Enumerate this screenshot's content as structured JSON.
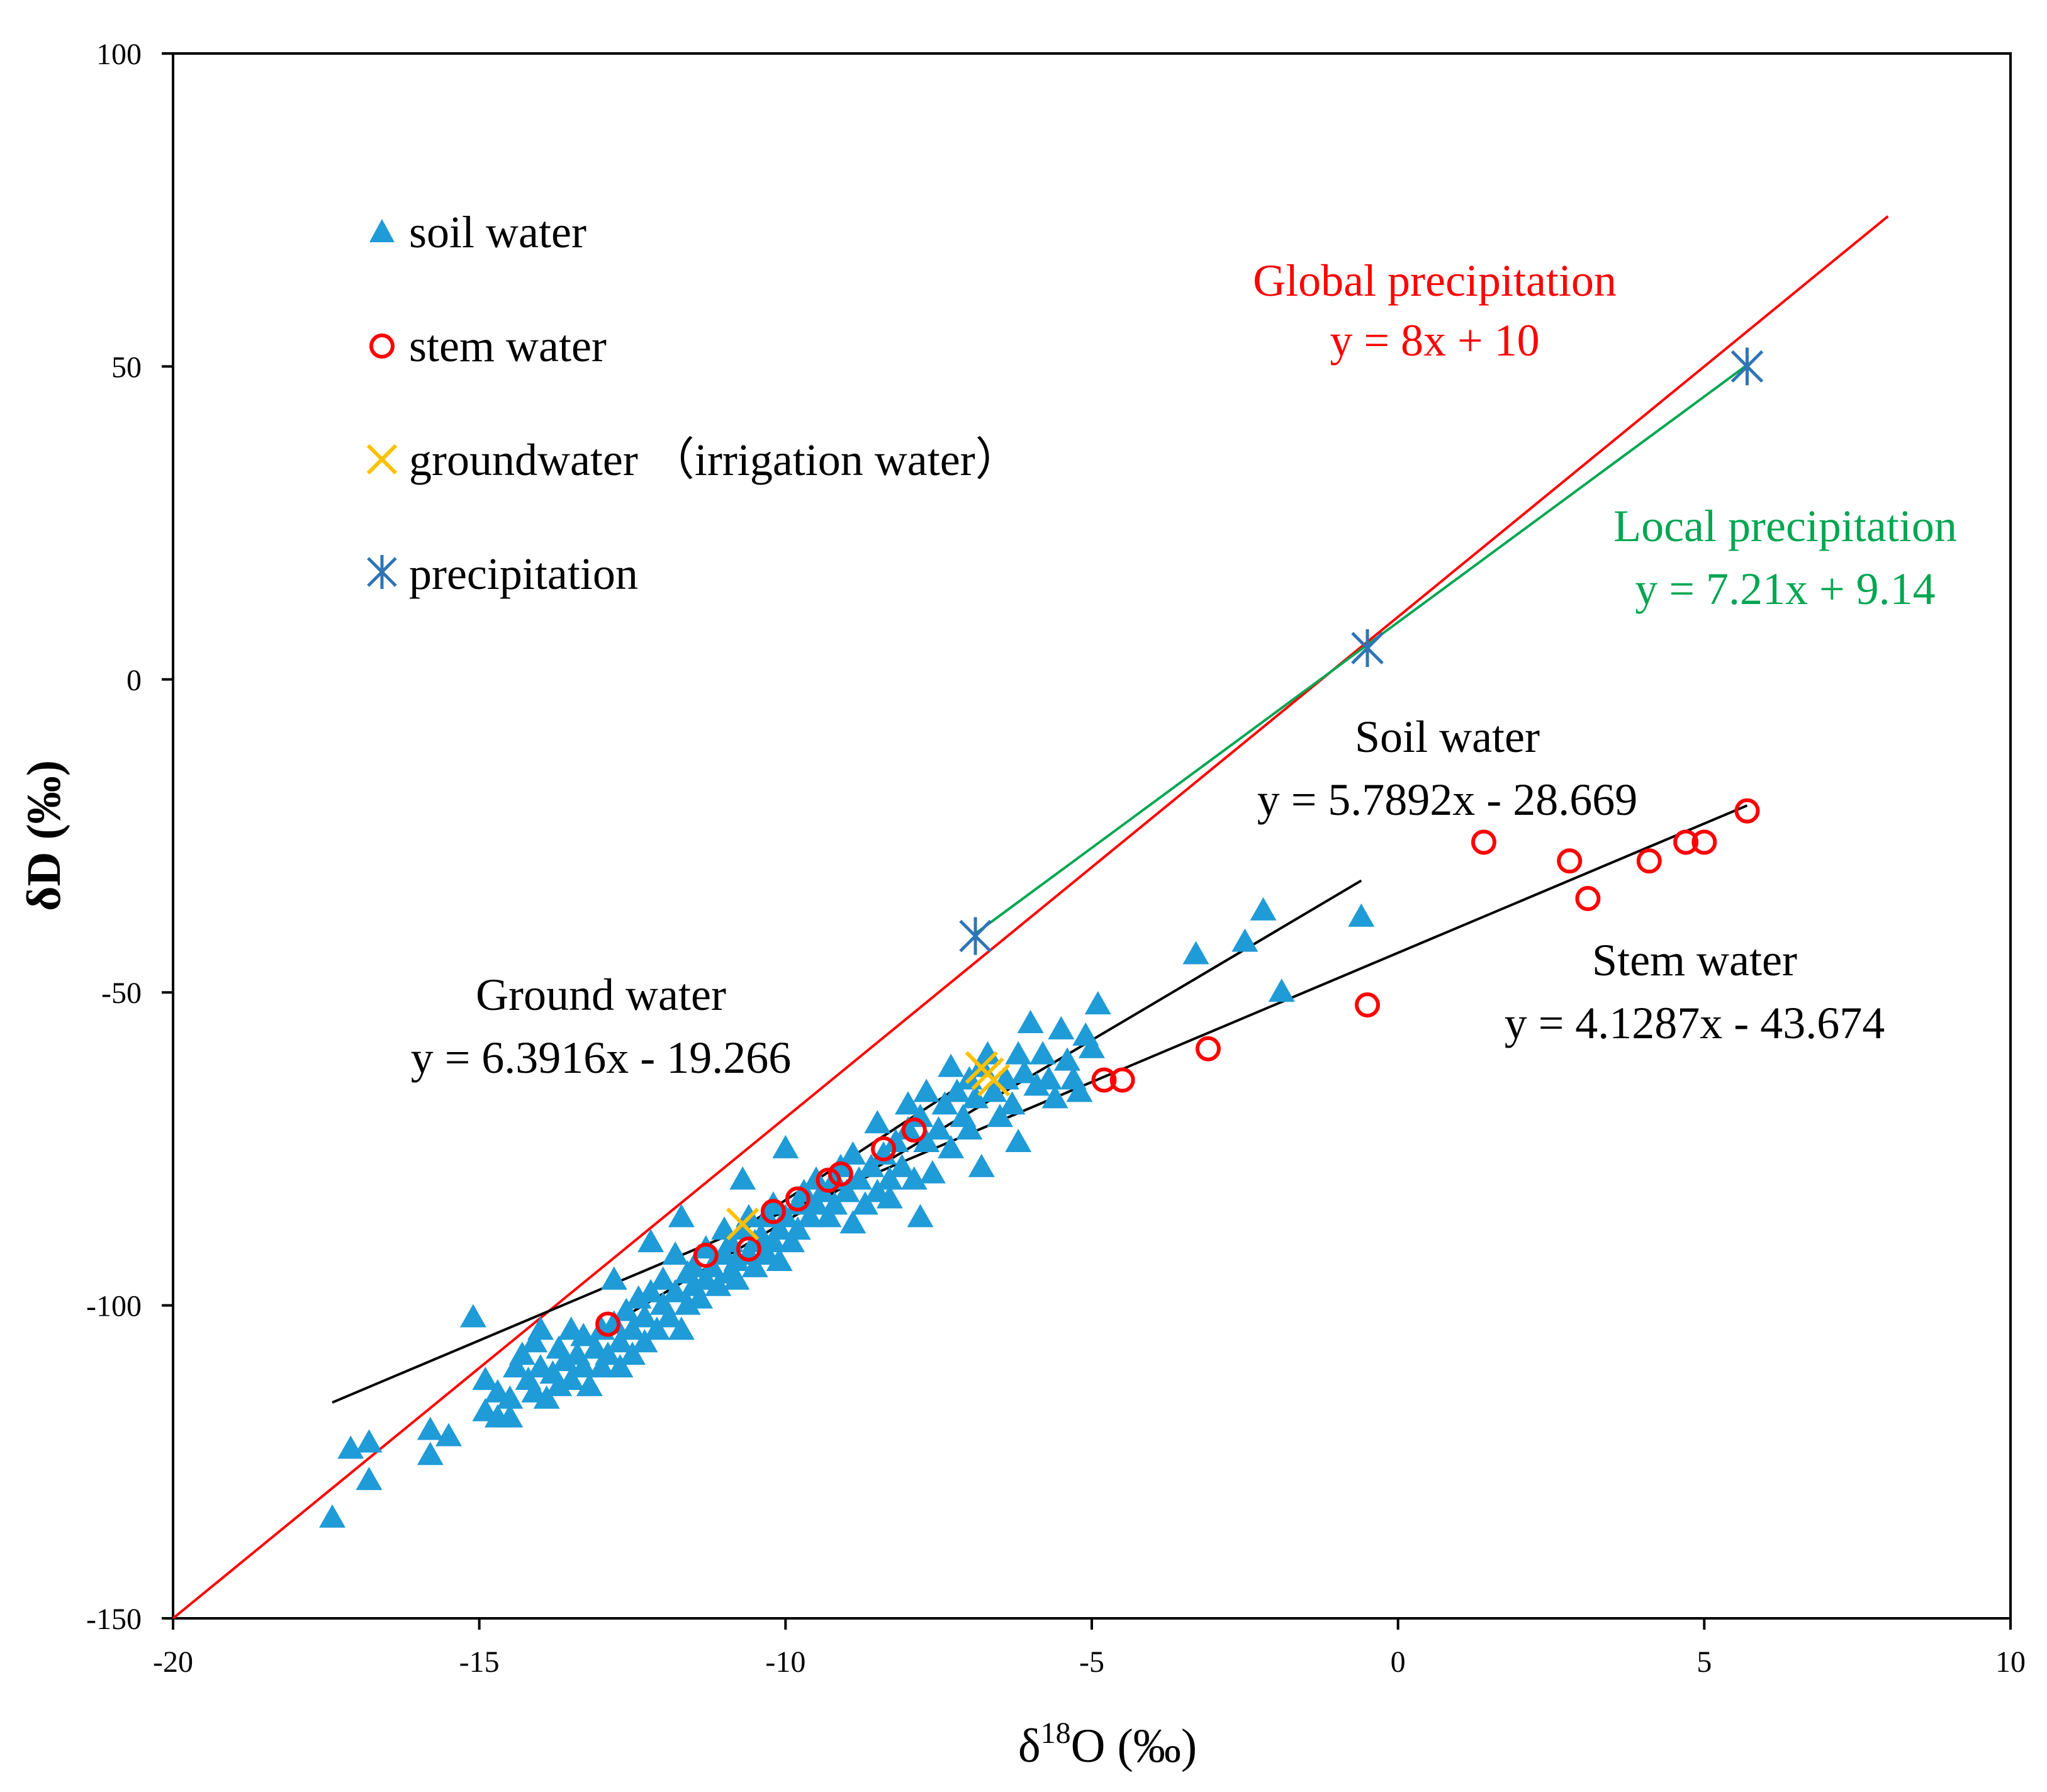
{
  "chart_data": {
    "type": "scatter",
    "title": "",
    "xlabel": "δ¹⁸O (‰)",
    "xlabel_main": "δ",
    "xlabel_sup": "18",
    "xlabel_rest": "O (‰)",
    "ylabel": "δD (‰)",
    "xlim": [
      -20,
      10
    ],
    "ylim": [
      -150,
      100
    ],
    "x_ticks": [
      -20,
      -15,
      -10,
      -5,
      0,
      5,
      10
    ],
    "y_ticks": [
      -150,
      -100,
      -50,
      0,
      50,
      100
    ],
    "x_tick_labels": [
      "-20",
      "-15",
      "-10",
      "-5",
      "0",
      "5",
      "10"
    ],
    "y_tick_labels": [
      "-150",
      "-100",
      "-50",
      "0",
      "50",
      "100"
    ],
    "grid": false,
    "legend": {
      "position": "top-left",
      "entries": [
        {
          "label": "soil water",
          "marker": "triangle",
          "color": "#1f9bd7"
        },
        {
          "label": "stem water",
          "marker": "circle-open",
          "color": "#ff0000"
        },
        {
          "label": "groundwater （irrigation water）",
          "marker": "x",
          "color": "#ffc000"
        },
        {
          "label": "precipitation",
          "marker": "asterisk",
          "color": "#2e75b6"
        }
      ]
    },
    "series": [
      {
        "name": "soil water",
        "marker": "triangle",
        "color": "#1f9bd7",
        "points": [
          [
            -17.4,
            -134
          ],
          [
            -17.1,
            -123
          ],
          [
            -16.8,
            -122
          ],
          [
            -16.8,
            -128
          ],
          [
            -15.8,
            -120
          ],
          [
            -15.8,
            -124
          ],
          [
            -15.5,
            -121
          ],
          [
            -15.1,
            -102
          ],
          [
            -14.9,
            -112
          ],
          [
            -14.9,
            -117
          ],
          [
            -14.7,
            -114
          ],
          [
            -14.7,
            -118
          ],
          [
            -14.5,
            -115
          ],
          [
            -14.5,
            -118
          ],
          [
            -14.4,
            -110
          ],
          [
            -14.3,
            -108
          ],
          [
            -14.2,
            -112
          ],
          [
            -14.1,
            -106
          ],
          [
            -14.1,
            -114
          ],
          [
            -14.0,
            -104
          ],
          [
            -14.0,
            -110
          ],
          [
            -13.9,
            -115
          ],
          [
            -13.8,
            -111
          ],
          [
            -13.7,
            -107
          ],
          [
            -13.7,
            -113
          ],
          [
            -13.6,
            -109
          ],
          [
            -13.5,
            -104
          ],
          [
            -13.5,
            -112
          ],
          [
            -13.4,
            -108
          ],
          [
            -13.3,
            -110
          ],
          [
            -13.3,
            -105
          ],
          [
            -13.2,
            -113
          ],
          [
            -13.1,
            -107
          ],
          [
            -13.0,
            -104
          ],
          [
            -13.0,
            -110
          ],
          [
            -12.9,
            -108
          ],
          [
            -12.8,
            -103
          ],
          [
            -12.8,
            -96
          ],
          [
            -12.7,
            -106
          ],
          [
            -12.7,
            -110
          ],
          [
            -12.6,
            -101
          ],
          [
            -12.5,
            -104
          ],
          [
            -12.5,
            -108
          ],
          [
            -12.4,
            -99
          ],
          [
            -12.3,
            -102
          ],
          [
            -12.3,
            -106
          ],
          [
            -12.2,
            -90
          ],
          [
            -12.2,
            -98
          ],
          [
            -12.1,
            -104
          ],
          [
            -12.0,
            -100
          ],
          [
            -12.0,
            -96
          ],
          [
            -11.9,
            -102
          ],
          [
            -11.8,
            -92
          ],
          [
            -11.8,
            -98
          ],
          [
            -11.7,
            -86
          ],
          [
            -11.7,
            -104
          ],
          [
            -11.6,
            -95
          ],
          [
            -11.6,
            -100
          ],
          [
            -11.5,
            -97
          ],
          [
            -11.5,
            -94
          ],
          [
            -11.4,
            -99
          ],
          [
            -11.3,
            -91
          ],
          [
            -11.3,
            -96
          ],
          [
            -11.2,
            -94
          ],
          [
            -11.1,
            -97
          ],
          [
            -11.0,
            -92
          ],
          [
            -11.0,
            -88
          ],
          [
            -10.9,
            -95
          ],
          [
            -10.9,
            -90
          ],
          [
            -10.8,
            -93
          ],
          [
            -10.8,
            -96
          ],
          [
            -10.7,
            -88
          ],
          [
            -10.7,
            -80
          ],
          [
            -10.6,
            -92
          ],
          [
            -10.6,
            -86
          ],
          [
            -10.5,
            -90
          ],
          [
            -10.5,
            -94
          ],
          [
            -10.4,
            -89
          ],
          [
            -10.3,
            -92
          ],
          [
            -10.3,
            -86
          ],
          [
            -10.2,
            -90
          ],
          [
            -10.2,
            -84
          ],
          [
            -10.1,
            -88
          ],
          [
            -10.1,
            -93
          ],
          [
            -10.0,
            -75
          ],
          [
            -10.0,
            -86
          ],
          [
            -9.9,
            -90
          ],
          [
            -9.8,
            -84
          ],
          [
            -9.8,
            -88
          ],
          [
            -9.7,
            -82
          ],
          [
            -9.6,
            -86
          ],
          [
            -9.5,
            -80
          ],
          [
            -9.5,
            -84
          ],
          [
            -9.4,
            -82
          ],
          [
            -9.3,
            -86
          ],
          [
            -9.2,
            -80
          ],
          [
            -9.2,
            -84
          ],
          [
            -9.1,
            -78
          ],
          [
            -9.0,
            -82
          ],
          [
            -8.9,
            -87
          ],
          [
            -8.9,
            -76
          ],
          [
            -8.8,
            -80
          ],
          [
            -8.7,
            -84
          ],
          [
            -8.6,
            -78
          ],
          [
            -8.5,
            -82
          ],
          [
            -8.5,
            -71
          ],
          [
            -8.4,
            -76
          ],
          [
            -8.3,
            -80
          ],
          [
            -8.3,
            -83
          ],
          [
            -8.2,
            -74
          ],
          [
            -8.1,
            -78
          ],
          [
            -8.0,
            -68
          ],
          [
            -8.0,
            -72
          ],
          [
            -7.9,
            -80
          ],
          [
            -7.8,
            -86
          ],
          [
            -7.8,
            -70
          ],
          [
            -7.7,
            -66
          ],
          [
            -7.7,
            -74
          ],
          [
            -7.6,
            -79
          ],
          [
            -7.5,
            -72
          ],
          [
            -7.4,
            -68
          ],
          [
            -7.3,
            -62
          ],
          [
            -7.3,
            -75
          ],
          [
            -7.2,
            -66
          ],
          [
            -7.1,
            -70
          ],
          [
            -7.0,
            -64
          ],
          [
            -7.0,
            -72
          ],
          [
            -6.9,
            -67
          ],
          [
            -6.8,
            -62
          ],
          [
            -6.8,
            -78
          ],
          [
            -6.7,
            -60
          ],
          [
            -6.6,
            -66
          ],
          [
            -6.5,
            -70
          ],
          [
            -6.4,
            -64
          ],
          [
            -6.3,
            -68
          ],
          [
            -6.2,
            -74
          ],
          [
            -6.2,
            -60
          ],
          [
            -6.1,
            -63
          ],
          [
            -6.0,
            -55
          ],
          [
            -5.9,
            -65
          ],
          [
            -5.8,
            -60
          ],
          [
            -5.7,
            -64
          ],
          [
            -5.6,
            -67
          ],
          [
            -5.5,
            -56
          ],
          [
            -5.4,
            -61
          ],
          [
            -5.3,
            -64
          ],
          [
            -5.2,
            -66
          ],
          [
            -5.1,
            -57
          ],
          [
            -5.0,
            -59
          ],
          [
            -4.9,
            -52
          ],
          [
            -3.3,
            -44
          ],
          [
            -2.5,
            -42
          ],
          [
            -2.2,
            -37
          ],
          [
            -1.9,
            -50
          ],
          [
            -0.6,
            -38
          ]
        ]
      },
      {
        "name": "stem water",
        "marker": "circle-open",
        "color": "#ff0000",
        "points": [
          [
            -12.9,
            -103
          ],
          [
            -11.3,
            -92
          ],
          [
            -10.6,
            -91
          ],
          [
            -10.2,
            -85
          ],
          [
            -9.8,
            -83
          ],
          [
            -9.3,
            -80
          ],
          [
            -9.1,
            -79
          ],
          [
            -8.4,
            -75
          ],
          [
            -7.9,
            -72
          ],
          [
            -4.8,
            -64
          ],
          [
            -4.5,
            -64
          ],
          [
            -3.1,
            -59
          ],
          [
            -0.5,
            -52
          ],
          [
            1.4,
            -26
          ],
          [
            2.8,
            -29
          ],
          [
            3.1,
            -35
          ],
          [
            4.1,
            -29
          ],
          [
            4.7,
            -26
          ],
          [
            5.0,
            -26
          ],
          [
            5.7,
            -21
          ]
        ]
      },
      {
        "name": "groundwater （irrigation water）",
        "marker": "x",
        "color": "#ffc000",
        "points": [
          [
            -10.7,
            -87
          ],
          [
            -6.8,
            -62
          ],
          [
            -6.6,
            -64
          ],
          [
            -6.7,
            -63
          ]
        ]
      },
      {
        "name": "precipitation",
        "marker": "asterisk",
        "color": "#2e75b6",
        "points": [
          [
            -6.9,
            -41
          ],
          [
            -0.5,
            5
          ],
          [
            5.7,
            50
          ]
        ]
      }
    ],
    "lines": [
      {
        "name": "Global precipitation",
        "slope": 8,
        "intercept": 10,
        "x_range": [
          -20,
          8
        ],
        "color": "#ff0000",
        "equation": "y = 8x + 10"
      },
      {
        "name": "Local precipitation",
        "slope": 7.21,
        "intercept": 9.14,
        "x_range": [
          -6.9,
          5.7
        ],
        "color": "#00a651",
        "equation": "y = 7.21x + 9.14"
      },
      {
        "name": "Soil water",
        "slope": 5.7892,
        "intercept": -28.669,
        "x_range": [
          -12.9,
          -0.6
        ],
        "color": "#000000",
        "equation": "y = 5.7892x - 28.669"
      },
      {
        "name": "Stem water",
        "slope": 4.1287,
        "intercept": -43.674,
        "x_range": [
          -17.4,
          5.7
        ],
        "color": "#000000",
        "equation": "y = 4.1287x - 43.674"
      },
      {
        "name": "Ground water",
        "slope": 6.3916,
        "intercept": -19.266,
        "x_range": [
          -10.7,
          -6.7
        ],
        "color": "#000000",
        "equation": "y = 6.3916x - 19.266"
      }
    ],
    "annotations": [
      {
        "title": "Global precipitation",
        "equation": "y = 8x + 10",
        "color": "#ff0000"
      },
      {
        "title": "Local precipitation",
        "equation": "y = 7.21x + 9.14",
        "color": "#00a651"
      },
      {
        "title": "Soil water",
        "equation": "y = 5.7892x - 28.669",
        "color": "#000000"
      },
      {
        "title": "Stem water",
        "equation": "y = 4.1287x - 43.674",
        "color": "#000000"
      },
      {
        "title": "Ground water",
        "equation": "y = 6.3916x - 19.266",
        "color": "#000000"
      }
    ]
  }
}
